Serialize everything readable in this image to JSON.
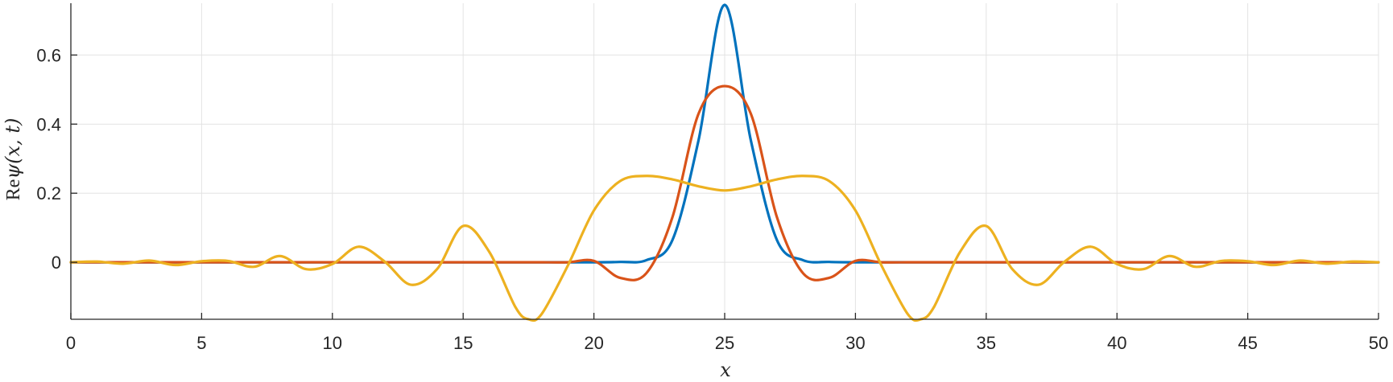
{
  "chart_data": {
    "type": "line",
    "title": "",
    "xlabel": "x",
    "ylabel": "Reψ(x, t)",
    "ylabel_parts": {
      "prefix": "Re",
      "body": "ψ(x, t)"
    },
    "xlim": [
      0,
      50
    ],
    "ylim": [
      -0.165,
      0.75
    ],
    "x_ticks": [
      0,
      5,
      10,
      15,
      20,
      25,
      30,
      35,
      40,
      45,
      50
    ],
    "x_tick_labels": [
      "0",
      "5",
      "10",
      "15",
      "20",
      "25",
      "30",
      "35",
      "40",
      "45",
      "50"
    ],
    "y_ticks": [
      0,
      0.2,
      0.4,
      0.6
    ],
    "y_tick_labels": [
      "0",
      "0.2",
      "0.4",
      "0.6"
    ],
    "grid": true,
    "legend": "none",
    "x": [
      0,
      1,
      2,
      3,
      4,
      5,
      6,
      7,
      8,
      9,
      10,
      11,
      12,
      13,
      14,
      15,
      16,
      17,
      17.5,
      18,
      19,
      20,
      21,
      22,
      23,
      24,
      25,
      26,
      27,
      28,
      29,
      30,
      31,
      32,
      32.5,
      33,
      34,
      35,
      36,
      37,
      38,
      39,
      40,
      41,
      42,
      43,
      44,
      45,
      46,
      47,
      48,
      49,
      50
    ],
    "series": [
      {
        "color": "#0072BD",
        "values": [
          0,
          0,
          0,
          0,
          0,
          0,
          0,
          0,
          0,
          0,
          0,
          0,
          0,
          0,
          0,
          0,
          0,
          0,
          0,
          0,
          0,
          0,
          0.001,
          0.006,
          0.064,
          0.353,
          0.745,
          0.353,
          0.064,
          0.006,
          0.001,
          0,
          0,
          0,
          0,
          0,
          0,
          0,
          0,
          0,
          0,
          0,
          0,
          0,
          0,
          0,
          0,
          0,
          0,
          0,
          0,
          0,
          0
        ]
      },
      {
        "color": "#D95319",
        "values": [
          0,
          0,
          0,
          0,
          0,
          0,
          0,
          0,
          0,
          0,
          0,
          0,
          0,
          0,
          0,
          0,
          0,
          0,
          0,
          0,
          0,
          0.004,
          -0.045,
          -0.032,
          0.13,
          0.43,
          0.51,
          0.43,
          0.13,
          -0.032,
          -0.045,
          0.004,
          0,
          0,
          0,
          0,
          0,
          0,
          0,
          0,
          0,
          0,
          0,
          0,
          0,
          0,
          0,
          0,
          0,
          0,
          0,
          0,
          0
        ]
      },
      {
        "color": "#EDB120",
        "values": [
          0,
          0.002,
          -0.004,
          0.005,
          -0.008,
          0.003,
          0.004,
          -0.013,
          0.018,
          -0.02,
          -0.005,
          0.045,
          0.002,
          -0.065,
          -0.02,
          0.105,
          0.03,
          -0.13,
          -0.165,
          -0.15,
          -0.01,
          0.15,
          0.235,
          0.25,
          0.24,
          0.22,
          0.208,
          0.22,
          0.24,
          0.25,
          0.235,
          0.15,
          -0.01,
          -0.15,
          -0.165,
          -0.13,
          0.03,
          0.105,
          -0.02,
          -0.065,
          0.002,
          0.045,
          -0.005,
          -0.02,
          0.018,
          -0.013,
          0.004,
          0.003,
          -0.008,
          0.005,
          -0.004,
          0.002,
          0
        ]
      }
    ]
  }
}
